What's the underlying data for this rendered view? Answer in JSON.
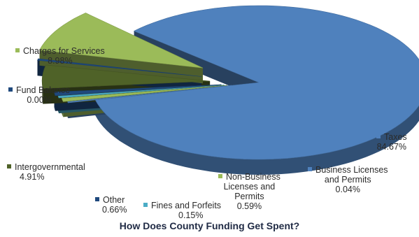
{
  "chart_data": {
    "type": "pie",
    "style": "3d-exploded",
    "title": "How Does County Funding Get Spent?",
    "slices": [
      {
        "label": "Taxes",
        "value": 84.67,
        "value_label": "84.67%",
        "color": "#4f81bd"
      },
      {
        "label": "Business Licenses and Permits",
        "value": 0.04,
        "value_label": "0.04%",
        "color": "#4f81bd"
      },
      {
        "label": "Non-Business Licenses and Permits",
        "value": 0.59,
        "value_label": "0.59%",
        "color": "#9bbb59"
      },
      {
        "label": "Fines and Forfeits",
        "value": 0.15,
        "value_label": "0.15%",
        "color": "#4bacc6"
      },
      {
        "label": "Other",
        "value": 0.66,
        "value_label": "0.66%",
        "color": "#1f497d"
      },
      {
        "label": "Intergovernmental",
        "value": 4.91,
        "value_label": "4.91%",
        "color": "#4f6228"
      },
      {
        "label": "Fund Balance",
        "value": 0.0,
        "value_label": "0.00%",
        "color": "#1f497d"
      },
      {
        "label": "Charges for Services",
        "value": 8.98,
        "value_label": "8.98%",
        "color": "#9bbb59"
      }
    ]
  },
  "labels": {
    "taxes": {
      "name": "Taxes",
      "pct": "84.67%"
    },
    "business": {
      "line1": "Business Licenses",
      "line2": "and  Permits",
      "pct": "0.04%"
    },
    "nonbusiness": {
      "line1": "Non-Business",
      "line2": "Licenses and",
      "line3": "Permits",
      "pct": "0.59%"
    },
    "fines": {
      "name": "Fines and Forfeits",
      "pct": "0.15%"
    },
    "other": {
      "name": "Other",
      "pct": "0.66%"
    },
    "intergov": {
      "name": "Intergovernmental",
      "pct": "4.91%"
    },
    "fund": {
      "name": "Fund Balance",
      "pct": "0.00%"
    },
    "charges": {
      "name": "Charges for Services",
      "pct": "8.98%"
    }
  },
  "colors": {
    "taxes": "#4f81bd",
    "taxes_side": "#2c5283",
    "green": "#9bbb59",
    "green_side": "#6b8a2e",
    "olive": "#4f6228",
    "olive_side": "#37461a",
    "navy": "#1f497d",
    "teal": "#4bacc6"
  }
}
